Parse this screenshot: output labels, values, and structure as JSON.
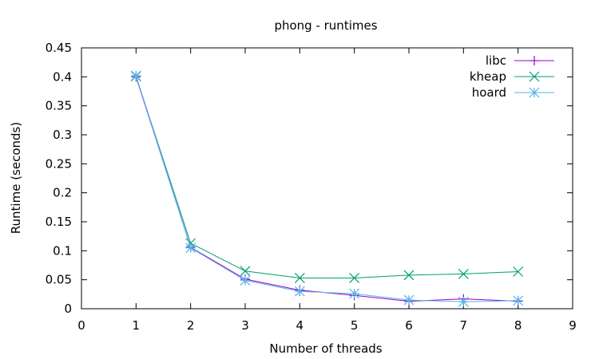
{
  "chart_data": {
    "type": "line",
    "title": "phong - runtimes",
    "xlabel": "Number of threads",
    "ylabel": "Runtime (seconds)",
    "xlim": [
      0,
      9
    ],
    "ylim": [
      0,
      0.45
    ],
    "xticks": [
      0,
      1,
      2,
      3,
      4,
      5,
      6,
      7,
      8,
      9
    ],
    "yticks": [
      0,
      0.05,
      0.1,
      0.15,
      0.2,
      0.25,
      0.3,
      0.35,
      0.4,
      0.45
    ],
    "grid": false,
    "legend_position": "top-right",
    "x": [
      1,
      2,
      3,
      4,
      5,
      6,
      7,
      8
    ],
    "series": [
      {
        "name": "libc",
        "color": "#9400d3",
        "marker": "plus",
        "values": [
          0.4,
          0.106,
          0.051,
          0.032,
          0.023,
          0.013,
          0.017,
          0.013
        ]
      },
      {
        "name": "kheap",
        "color": "#009e73",
        "marker": "cross",
        "values": [
          0.401,
          0.113,
          0.065,
          0.053,
          0.053,
          0.058,
          0.06,
          0.064
        ]
      },
      {
        "name": "hoard",
        "color": "#56b4e9",
        "marker": "star",
        "values": [
          0.402,
          0.105,
          0.049,
          0.03,
          0.026,
          0.015,
          0.012,
          0.014
        ]
      }
    ]
  }
}
